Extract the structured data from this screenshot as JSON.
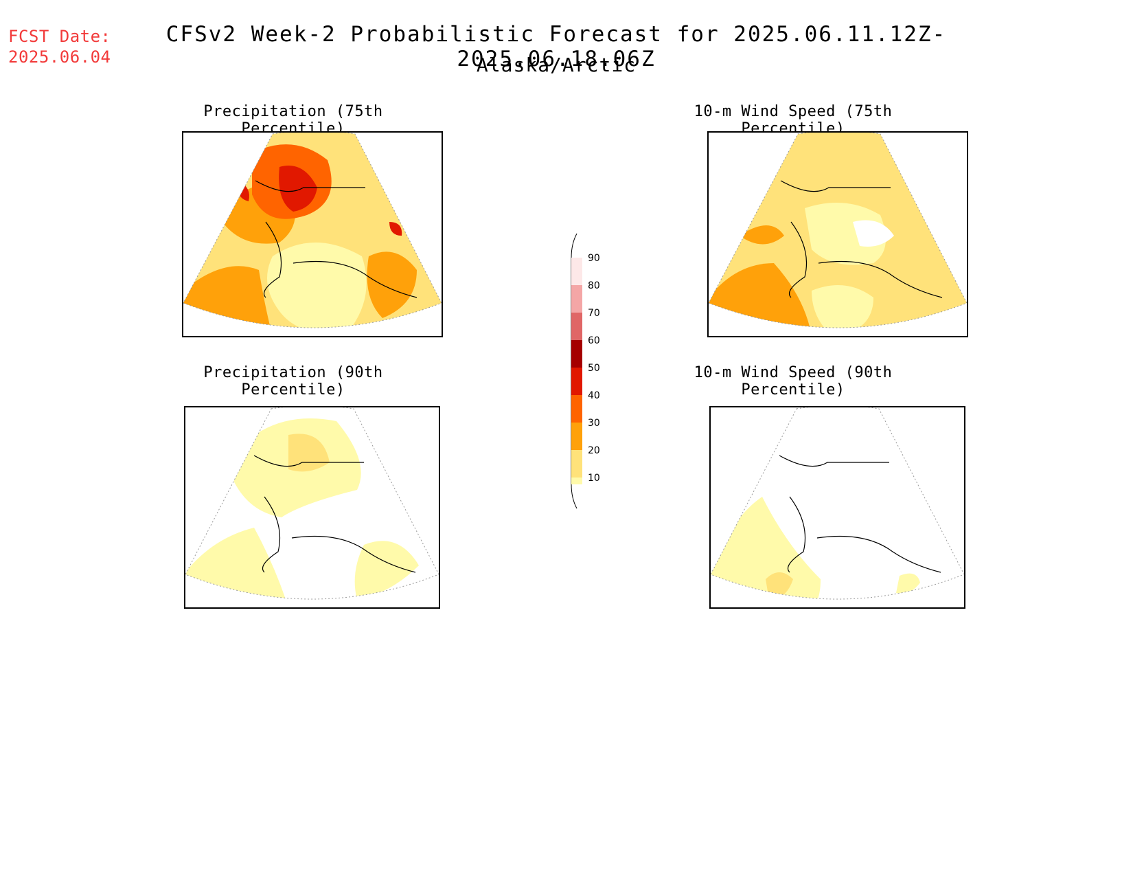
{
  "header": {
    "fcst_label": "FCST Date:",
    "fcst_date": "2025.06.04",
    "title": "CFSv2 Week-2 Probabilistic Forecast for 2025.06.11.12Z-2025.06.18.06Z",
    "subtitle": "Alaska/Arctic"
  },
  "panels": {
    "precip75": {
      "title": "Precipitation (75th Percentile)"
    },
    "precip90": {
      "title": "Precipitation (90th Percentile)"
    },
    "wind75": {
      "title": "10-m Wind Speed (75th Percentile)"
    },
    "wind90": {
      "title": "10-m Wind Speed (90th Percentile)"
    }
  },
  "colorbar": {
    "levels": [
      "10",
      "20",
      "30",
      "40",
      "50",
      "60",
      "70",
      "80",
      "90"
    ],
    "colors": {
      "10-20": "#fffaaa",
      "20-30": "#ffe27a",
      "30-40": "#ffa10a",
      "40-50": "#ff6400",
      "50-60": "#e11800",
      "60-70": "#a50000",
      "70-80": "#e06666",
      "80-90": "#f4a6a6",
      "90+": "#fde8e8"
    }
  }
}
